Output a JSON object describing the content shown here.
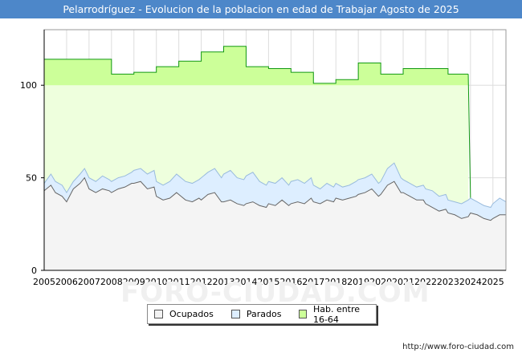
{
  "header": {
    "title": "Pelarrodríguez - Evolucion de la poblacion en edad de Trabajar Agosto de 2025"
  },
  "footer": {
    "credit": "http://www.foro-ciudad.com",
    "watermark": "FORO-CIUDAD.COM"
  },
  "legend": {
    "items": [
      {
        "label": "Ocupados",
        "color": "#f2f2f2"
      },
      {
        "label": "Parados",
        "color": "#ddeeff"
      },
      {
        "label": "Hab. entre 16-64",
        "color": "#ccff99"
      }
    ]
  },
  "colors": {
    "title_bar": "#4d87c9",
    "hab_fill": "#ccff99",
    "hab_fill_light": "#eeffdd",
    "hab_line": "#119911",
    "parados_fill": "#ddeeff",
    "parados_line": "#99bbdd",
    "ocupados_fill": "#f4f4f4",
    "ocupados_line": "#666666",
    "grid": "#dddddd"
  },
  "chart_data": {
    "type": "area",
    "title": "Pelarrodríguez - Evolucion de la poblacion en edad de Trabajar Agosto de 2025",
    "x_ticks": [
      "2005",
      "2006",
      "2007",
      "2008",
      "2009",
      "2010",
      "2011",
      "2012",
      "2013",
      "2014",
      "2015",
      "2016",
      "2017",
      "2018",
      "2019",
      "2020",
      "2021",
      "2022",
      "2023",
      "2024",
      "2025"
    ],
    "y_ticks": [
      0,
      50,
      100
    ],
    "ylim": [
      0,
      130
    ],
    "xlim": [
      2005,
      2025.58
    ],
    "grid": true,
    "legend_position": "bottom-center",
    "series": [
      {
        "name": "Hab. entre 16-64",
        "step": true,
        "points": [
          [
            2005.0,
            114
          ],
          [
            2007.0,
            114
          ],
          [
            2008.0,
            106
          ],
          [
            2009.0,
            107
          ],
          [
            2010.0,
            110
          ],
          [
            2011.0,
            113
          ],
          [
            2012.0,
            118
          ],
          [
            2013.0,
            121
          ],
          [
            2014.0,
            110
          ],
          [
            2015.0,
            109
          ],
          [
            2016.0,
            107
          ],
          [
            2017.0,
            101
          ],
          [
            2018.0,
            103
          ],
          [
            2019.0,
            112
          ],
          [
            2020.0,
            106
          ],
          [
            2021.0,
            109
          ],
          [
            2022.0,
            109
          ],
          [
            2023.0,
            106
          ]
        ],
        "end": 2023.9
      },
      {
        "name": "Parados",
        "points": [
          [
            2005.0,
            47
          ],
          [
            2005.3,
            52
          ],
          [
            2005.5,
            48
          ],
          [
            2005.8,
            46
          ],
          [
            2006.0,
            42
          ],
          [
            2006.3,
            48
          ],
          [
            2006.6,
            52
          ],
          [
            2006.8,
            55
          ],
          [
            2007.0,
            50
          ],
          [
            2007.3,
            48
          ],
          [
            2007.6,
            51
          ],
          [
            2007.9,
            49
          ],
          [
            2008.0,
            48
          ],
          [
            2008.3,
            50
          ],
          [
            2008.6,
            51
          ],
          [
            2008.9,
            53
          ],
          [
            2009.0,
            54
          ],
          [
            2009.3,
            55
          ],
          [
            2009.6,
            52
          ],
          [
            2009.9,
            54
          ],
          [
            2010.0,
            48
          ],
          [
            2010.3,
            46
          ],
          [
            2010.6,
            48
          ],
          [
            2010.9,
            52
          ],
          [
            2011.0,
            51
          ],
          [
            2011.3,
            48
          ],
          [
            2011.6,
            47
          ],
          [
            2011.9,
            49
          ],
          [
            2012.0,
            50
          ],
          [
            2012.3,
            53
          ],
          [
            2012.6,
            55
          ],
          [
            2012.9,
            50
          ],
          [
            2013.0,
            52
          ],
          [
            2013.3,
            54
          ],
          [
            2013.6,
            50
          ],
          [
            2013.9,
            49
          ],
          [
            2014.0,
            51
          ],
          [
            2014.3,
            53
          ],
          [
            2014.6,
            48
          ],
          [
            2014.9,
            46
          ],
          [
            2015.0,
            48
          ],
          [
            2015.3,
            47
          ],
          [
            2015.6,
            50
          ],
          [
            2015.9,
            46
          ],
          [
            2016.0,
            48
          ],
          [
            2016.3,
            49
          ],
          [
            2016.6,
            47
          ],
          [
            2016.9,
            50
          ],
          [
            2017.0,
            46
          ],
          [
            2017.3,
            44
          ],
          [
            2017.6,
            47
          ],
          [
            2017.9,
            45
          ],
          [
            2018.0,
            47
          ],
          [
            2018.3,
            45
          ],
          [
            2018.6,
            46
          ],
          [
            2018.9,
            48
          ],
          [
            2019.0,
            49
          ],
          [
            2019.3,
            50
          ],
          [
            2019.6,
            52
          ],
          [
            2019.9,
            47
          ],
          [
            2020.0,
            48
          ],
          [
            2020.3,
            55
          ],
          [
            2020.6,
            58
          ],
          [
            2020.9,
            50
          ],
          [
            2021.0,
            49
          ],
          [
            2021.3,
            47
          ],
          [
            2021.6,
            45
          ],
          [
            2021.9,
            46
          ],
          [
            2022.0,
            44
          ],
          [
            2022.3,
            43
          ],
          [
            2022.6,
            40
          ],
          [
            2022.9,
            41
          ],
          [
            2023.0,
            38
          ],
          [
            2023.3,
            37
          ],
          [
            2023.6,
            36
          ],
          [
            2023.9,
            38
          ],
          [
            2024.0,
            39
          ],
          [
            2024.3,
            37
          ],
          [
            2024.6,
            35
          ],
          [
            2024.9,
            34
          ],
          [
            2025.0,
            36
          ],
          [
            2025.3,
            39
          ],
          [
            2025.58,
            37
          ]
        ]
      },
      {
        "name": "Ocupados",
        "points": [
          [
            2005.0,
            43
          ],
          [
            2005.3,
            46
          ],
          [
            2005.5,
            42
          ],
          [
            2005.8,
            40
          ],
          [
            2006.0,
            37
          ],
          [
            2006.3,
            44
          ],
          [
            2006.6,
            47
          ],
          [
            2006.8,
            50
          ],
          [
            2007.0,
            44
          ],
          [
            2007.3,
            42
          ],
          [
            2007.6,
            44
          ],
          [
            2007.9,
            43
          ],
          [
            2008.0,
            42
          ],
          [
            2008.3,
            44
          ],
          [
            2008.6,
            45
          ],
          [
            2008.9,
            47
          ],
          [
            2009.0,
            47
          ],
          [
            2009.3,
            48
          ],
          [
            2009.6,
            44
          ],
          [
            2009.9,
            45
          ],
          [
            2010.0,
            40
          ],
          [
            2010.3,
            38
          ],
          [
            2010.6,
            39
          ],
          [
            2010.9,
            42
          ],
          [
            2011.0,
            41
          ],
          [
            2011.3,
            38
          ],
          [
            2011.6,
            37
          ],
          [
            2011.9,
            39
          ],
          [
            2012.0,
            38
          ],
          [
            2012.3,
            41
          ],
          [
            2012.6,
            42
          ],
          [
            2012.9,
            37
          ],
          [
            2013.0,
            37
          ],
          [
            2013.3,
            38
          ],
          [
            2013.6,
            36
          ],
          [
            2013.9,
            35
          ],
          [
            2014.0,
            36
          ],
          [
            2014.3,
            37
          ],
          [
            2014.6,
            35
          ],
          [
            2014.9,
            34
          ],
          [
            2015.0,
            36
          ],
          [
            2015.3,
            35
          ],
          [
            2015.6,
            38
          ],
          [
            2015.9,
            35
          ],
          [
            2016.0,
            36
          ],
          [
            2016.3,
            37
          ],
          [
            2016.6,
            36
          ],
          [
            2016.9,
            39
          ],
          [
            2017.0,
            37
          ],
          [
            2017.3,
            36
          ],
          [
            2017.6,
            38
          ],
          [
            2017.9,
            37
          ],
          [
            2018.0,
            39
          ],
          [
            2018.3,
            38
          ],
          [
            2018.6,
            39
          ],
          [
            2018.9,
            40
          ],
          [
            2019.0,
            41
          ],
          [
            2019.3,
            42
          ],
          [
            2019.6,
            44
          ],
          [
            2019.9,
            40
          ],
          [
            2020.0,
            41
          ],
          [
            2020.3,
            46
          ],
          [
            2020.6,
            48
          ],
          [
            2020.9,
            42
          ],
          [
            2021.0,
            42
          ],
          [
            2021.3,
            40
          ],
          [
            2021.6,
            38
          ],
          [
            2021.9,
            38
          ],
          [
            2022.0,
            36
          ],
          [
            2022.3,
            34
          ],
          [
            2022.6,
            32
          ],
          [
            2022.9,
            33
          ],
          [
            2023.0,
            31
          ],
          [
            2023.3,
            30
          ],
          [
            2023.6,
            28
          ],
          [
            2023.9,
            29
          ],
          [
            2024.0,
            31
          ],
          [
            2024.3,
            30
          ],
          [
            2024.6,
            28
          ],
          [
            2024.9,
            27
          ],
          [
            2025.0,
            28
          ],
          [
            2025.3,
            30
          ],
          [
            2025.58,
            30
          ]
        ]
      }
    ]
  }
}
